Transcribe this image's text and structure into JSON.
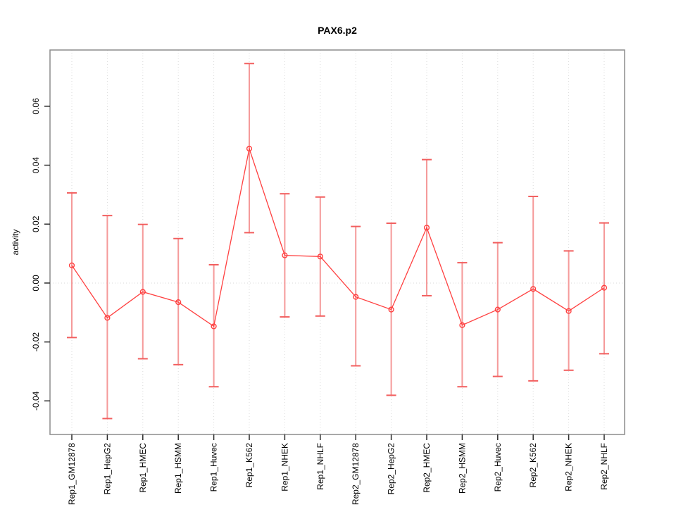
{
  "chart_data": {
    "type": "line",
    "title": "PAX6.p2",
    "xlabel": "",
    "ylabel": "activity",
    "legend_position": "none",
    "grid": {
      "vertical_at_categories": true,
      "horizontal_at_zero": true,
      "style": "dotted"
    },
    "categories": [
      "Rep1_GM12878",
      "Rep1_HepG2",
      "Rep1_HMEC",
      "Rep1_HSMM",
      "Rep1_Huvec",
      "Rep1_K562",
      "Rep1_NHEK",
      "Rep1_NHLF",
      "Rep2_GM12878",
      "Rep2_HepG2",
      "Rep2_HMEC",
      "Rep2_HSMM",
      "Rep2_Huvec",
      "Rep2_K562",
      "Rep2_NHEK",
      "Rep2_NHLF"
    ],
    "series": [
      {
        "name": "activity",
        "values": [
          0.006,
          -0.0118,
          -0.003,
          -0.0065,
          -0.0147,
          0.0456,
          0.0094,
          0.009,
          -0.0047,
          -0.009,
          0.0188,
          -0.0143,
          -0.009,
          -0.002,
          -0.0095,
          -0.0016
        ],
        "error_low": [
          -0.0185,
          -0.046,
          -0.0257,
          -0.0277,
          -0.0352,
          0.0171,
          -0.0115,
          -0.0112,
          -0.0281,
          -0.0381,
          -0.0043,
          -0.0352,
          -0.0317,
          -0.0332,
          -0.0296,
          -0.024
        ],
        "error_high": [
          0.0306,
          0.0229,
          0.0199,
          0.0151,
          0.0062,
          0.0745,
          0.0303,
          0.0292,
          0.0192,
          0.0203,
          0.0419,
          0.0069,
          0.0137,
          0.0294,
          0.0109,
          0.0204
        ]
      }
    ],
    "ylim": [
      -0.0514,
      0.0791
    ],
    "yticks": [
      -0.04,
      -0.02,
      0.0,
      0.02,
      0.04,
      0.06
    ],
    "ytick_labels": [
      "-0.04",
      "-0.02",
      "0.00",
      "0.02",
      "0.04",
      "0.06"
    ],
    "colors": {
      "point": "#ff4040",
      "line": "#ff4040",
      "error_bar": "#f59a9a",
      "error_cap": "#f25f5f",
      "grid": "#dadada",
      "frame": "#8c8c8c",
      "tick": "#2b2b2b",
      "text": "#000000",
      "background": "#ffffff"
    }
  }
}
